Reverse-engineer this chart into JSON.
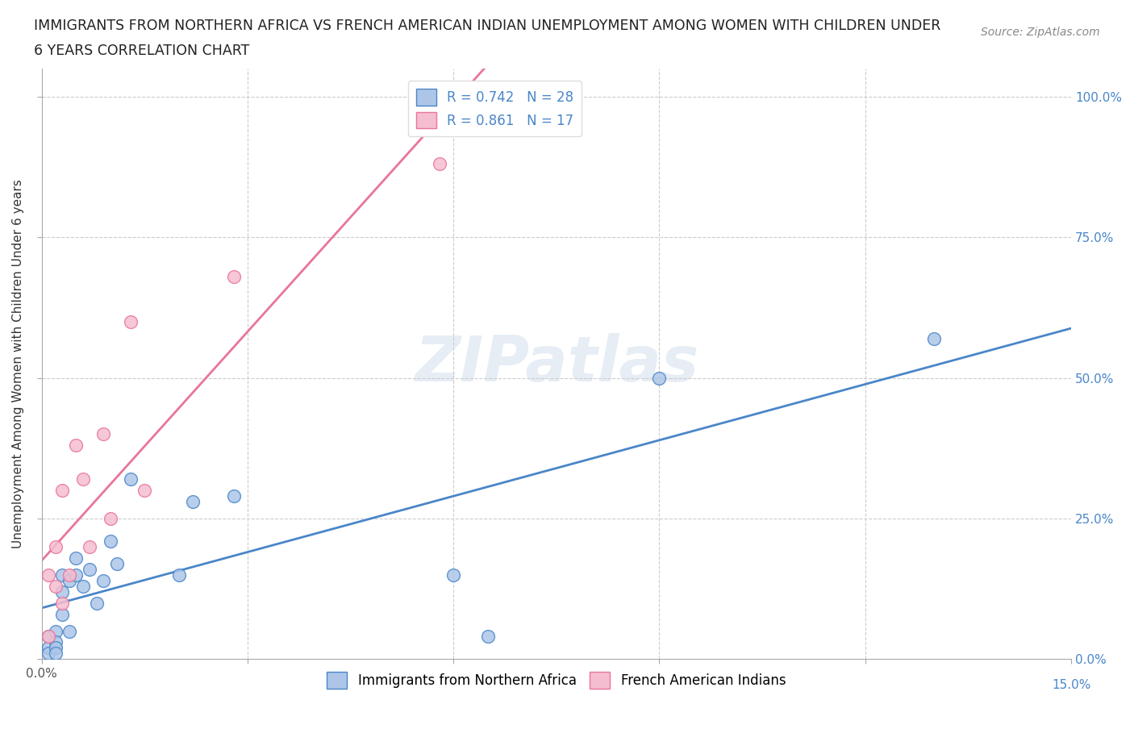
{
  "title_line1": "IMMIGRANTS FROM NORTHERN AFRICA VS FRENCH AMERICAN INDIAN UNEMPLOYMENT AMONG WOMEN WITH CHILDREN UNDER",
  "title_line2": "6 YEARS CORRELATION CHART",
  "source": "Source: ZipAtlas.com",
  "ylabel": "Unemployment Among Women with Children Under 6 years",
  "watermark": "ZIPatlas",
  "blue_label": "Immigrants from Northern Africa",
  "pink_label": "French American Indians",
  "blue_R": "0.742",
  "blue_N": "28",
  "pink_R": "0.861",
  "pink_N": "17",
  "blue_color": "#adc6e8",
  "pink_color": "#f5bdd0",
  "blue_line_color": "#4a86c8",
  "pink_line_color": "#e8759a",
  "xmin": 0.0,
  "xmax": 0.15,
  "ymin": 0.0,
  "ymax": 1.05,
  "yticks": [
    0.0,
    0.25,
    0.5,
    0.75,
    1.0
  ],
  "ytick_labels": [
    "0.0%",
    "25.0%",
    "50.0%",
    "75.0%",
    "100.0%"
  ],
  "blue_x": [
    0.001,
    0.001,
    0.001,
    0.002,
    0.002,
    0.002,
    0.002,
    0.003,
    0.003,
    0.003,
    0.004,
    0.004,
    0.005,
    0.005,
    0.006,
    0.007,
    0.008,
    0.009,
    0.01,
    0.011,
    0.013,
    0.02,
    0.022,
    0.028,
    0.06,
    0.065,
    0.09,
    0.13
  ],
  "blue_y": [
    0.04,
    0.02,
    0.01,
    0.05,
    0.03,
    0.02,
    0.01,
    0.12,
    0.08,
    0.15,
    0.14,
    0.05,
    0.15,
    0.18,
    0.13,
    0.16,
    0.1,
    0.14,
    0.21,
    0.17,
    0.32,
    0.15,
    0.28,
    0.29,
    0.15,
    0.04,
    0.5,
    0.57
  ],
  "pink_x": [
    0.001,
    0.001,
    0.002,
    0.002,
    0.003,
    0.003,
    0.004,
    0.005,
    0.006,
    0.007,
    0.009,
    0.01,
    0.013,
    0.015,
    0.028,
    0.058,
    0.062
  ],
  "pink_y": [
    0.04,
    0.15,
    0.13,
    0.2,
    0.1,
    0.3,
    0.15,
    0.38,
    0.32,
    0.2,
    0.4,
    0.25,
    0.6,
    0.3,
    0.68,
    0.88,
    1.0
  ],
  "title_fontsize": 12.5,
  "axis_label_fontsize": 11,
  "tick_fontsize": 11,
  "legend_fontsize": 12,
  "source_fontsize": 10
}
